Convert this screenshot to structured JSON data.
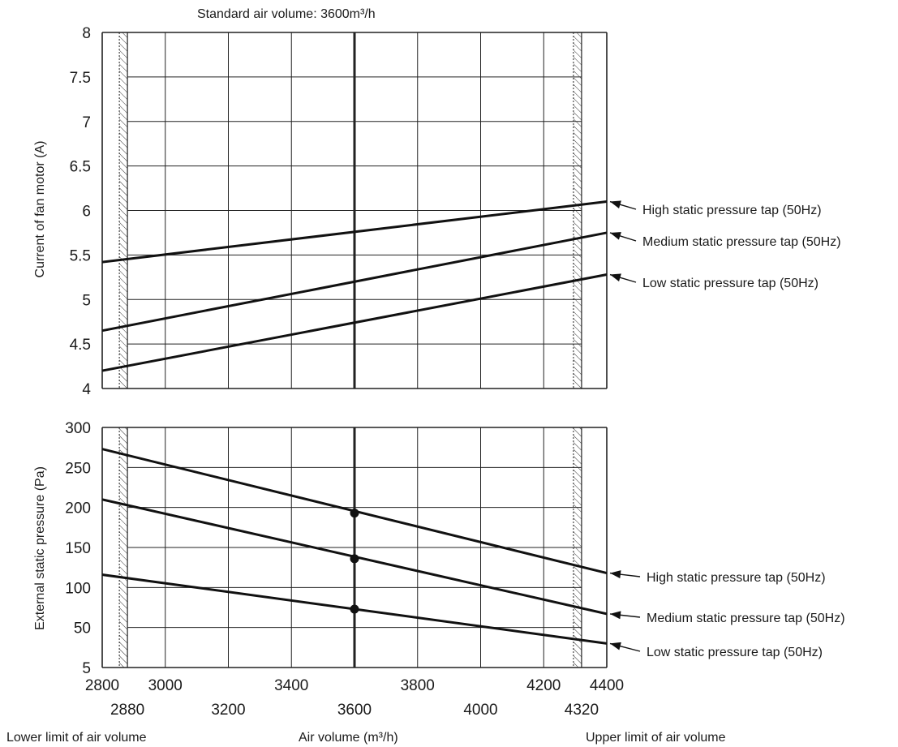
{
  "chart_data": [
    {
      "type": "line",
      "title": "Standard air volume: 3600m³/h",
      "ylabel": "Current of fan motor (A)",
      "xlim": [
        2800,
        4400
      ],
      "ylim": [
        4,
        8
      ],
      "yticks": [
        "4",
        "4.5",
        "5",
        "5.5",
        "6",
        "6.5",
        "7",
        "7.5",
        "8"
      ],
      "grid": true,
      "x": [
        2800,
        4400
      ],
      "series": [
        {
          "name": "High static pressure tap (50Hz)",
          "values": [
            5.42,
            6.1
          ]
        },
        {
          "name": "Medium static pressure tap (50Hz)",
          "values": [
            4.65,
            5.75
          ]
        },
        {
          "name": "Low static pressure tap (50Hz)",
          "values": [
            4.2,
            5.28
          ]
        }
      ]
    },
    {
      "type": "line",
      "ylabel": "External static pressure (Pa)",
      "xlabel": "Air volume (m³/h)",
      "xlim": [
        2800,
        4400
      ],
      "ylim": [
        0,
        300
      ],
      "yticks": [
        "5",
        "50",
        "100",
        "150",
        "200",
        "250",
        "300"
      ],
      "xticks_top": [
        "2800",
        "3000",
        "3400",
        "3800",
        "4200",
        "4400"
      ],
      "xticks_bottom": [
        "2880",
        "3200",
        "3600",
        "4000",
        "4320"
      ],
      "grid": true,
      "x": [
        2800,
        4400
      ],
      "series": [
        {
          "name": "High static pressure tap (50Hz)",
          "values": [
            273,
            118
          ]
        },
        {
          "name": "Medium static pressure tap (50Hz)",
          "values": [
            210,
            67
          ]
        },
        {
          "name": "Low static pressure tap (50Hz)",
          "values": [
            116,
            30
          ]
        }
      ],
      "points": [
        {
          "x": 3600,
          "y": 193
        },
        {
          "x": 3600,
          "y": 136
        },
        {
          "x": 3600,
          "y": 73
        }
      ]
    }
  ],
  "standard_air_volume": 3600,
  "limits": {
    "lower_value": 2880,
    "upper_value": 4320,
    "lower_label": "Lower limit of air volume",
    "upper_label": "Upper limit of air volume"
  }
}
